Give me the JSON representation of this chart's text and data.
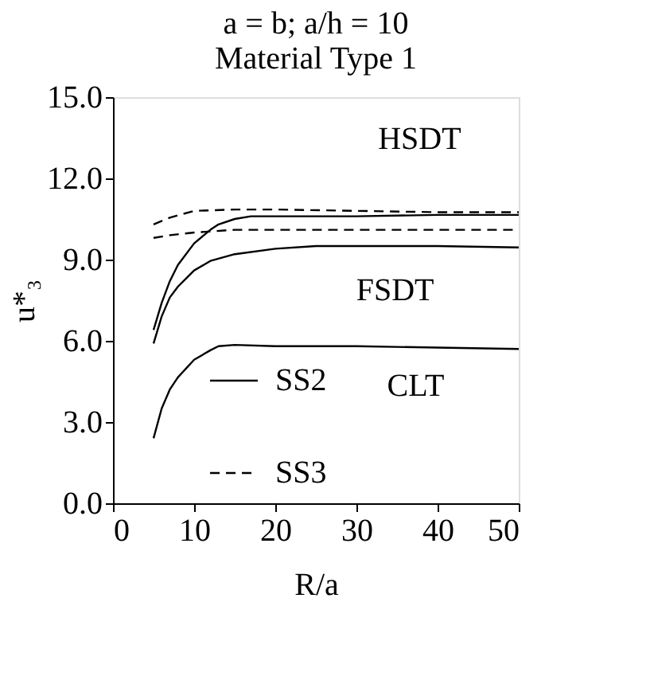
{
  "chart_data": {
    "type": "line",
    "title": "a = b;   a/h = 10",
    "subtitle": "Material Type 1",
    "xlabel": "R/a",
    "ylabel": "u*₃",
    "xlim": [
      0,
      50
    ],
    "xticks": [
      0,
      10,
      20,
      30,
      40,
      50
    ],
    "ylim": [
      0,
      15
    ],
    "yticks": [
      {
        "value": 0,
        "label": "0.0"
      },
      {
        "value": 3,
        "label": "3.0"
      },
      {
        "value": 6,
        "label": "6.0"
      },
      {
        "value": 9,
        "label": "9.0"
      },
      {
        "value": 12,
        "label": "12.0"
      },
      {
        "value": 15,
        "label": "15.0"
      }
    ],
    "grid": false,
    "legend": "bottom",
    "marker": "none",
    "series": [
      {
        "name": "SS3",
        "color": "#000000",
        "line_style": "dashed",
        "x": [
          5,
          7,
          10,
          15,
          20,
          30,
          40,
          50
        ],
        "values": [
          10.3,
          10.55,
          10.8,
          10.85,
          10.85,
          10.8,
          10.75,
          10.75
        ]
      },
      {
        "name": "SS2",
        "color": "#000000",
        "line_style": "solid",
        "x": [
          5,
          6,
          7,
          8,
          10,
          12,
          13,
          15,
          17,
          20,
          30,
          40,
          50
        ],
        "values": [
          6.4,
          7.4,
          8.2,
          8.8,
          9.6,
          10.1,
          10.3,
          10.5,
          10.6,
          10.6,
          10.6,
          10.65,
          10.65
        ]
      },
      {
        "color": "#000000",
        "line_style": "dashed",
        "x": [
          5,
          7,
          10,
          15,
          20,
          30,
          40,
          50
        ],
        "values": [
          9.8,
          9.9,
          10.0,
          10.1,
          10.1,
          10.1,
          10.1,
          10.1
        ]
      },
      {
        "color": "#000000",
        "line_style": "solid",
        "x": [
          5,
          6,
          7,
          8,
          10,
          12,
          15,
          20,
          25,
          30,
          40,
          50
        ],
        "values": [
          5.9,
          6.9,
          7.6,
          8.0,
          8.6,
          8.95,
          9.2,
          9.4,
          9.5,
          9.5,
          9.5,
          9.45
        ]
      },
      {
        "color": "#000000",
        "line_style": "solid",
        "x": [
          5,
          6,
          7,
          8,
          10,
          12,
          13,
          15,
          20,
          30,
          40,
          50
        ],
        "values": [
          2.4,
          3.5,
          4.2,
          4.65,
          5.3,
          5.65,
          5.8,
          5.85,
          5.8,
          5.8,
          5.75,
          5.7
        ]
      }
    ],
    "annotations": [
      {
        "text": "HSDT",
        "x": 27,
        "y": 10.8
      },
      {
        "text": "FSDT",
        "x": 23,
        "y": 10.1
      },
      {
        "text": "CLT",
        "x": 27.5,
        "y": 5.75
      }
    ]
  }
}
